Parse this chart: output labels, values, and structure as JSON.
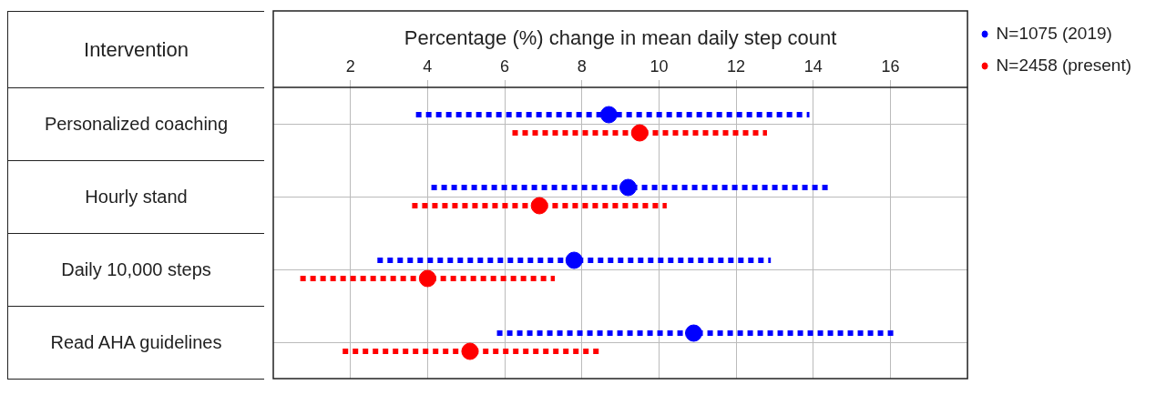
{
  "chart_data": {
    "type": "scatter",
    "orientation": "horizontal",
    "xlabel": "Percentage (%) change in mean daily step count",
    "ylabel": "Intervention",
    "categories": [
      "Personalized coaching",
      "Hourly stand",
      "Daily 10,000 steps",
      "Read AHA guidelines"
    ],
    "series": [
      {
        "name": "N=1075 (2019)",
        "color": "#0000ff",
        "values": [
          8.7,
          9.2,
          7.8,
          10.9
        ],
        "errors": [
          [
            3.7,
            13.9
          ],
          [
            4.1,
            14.4
          ],
          [
            2.7,
            12.9
          ],
          [
            5.8,
            16.1
          ]
        ]
      },
      {
        "name": "N=2458 (present)",
        "color": "#ff0000",
        "values": [
          9.5,
          6.9,
          4.0,
          5.1
        ],
        "errors": [
          [
            6.2,
            12.8
          ],
          [
            3.6,
            10.2
          ],
          [
            0.7,
            7.3
          ],
          [
            1.8,
            8.5
          ]
        ]
      }
    ],
    "xlim": [
      0,
      18
    ],
    "xticks": [
      2,
      4,
      6,
      8,
      10,
      12,
      14,
      16
    ],
    "grid": true,
    "legend": "top right",
    "marker": "circle"
  }
}
